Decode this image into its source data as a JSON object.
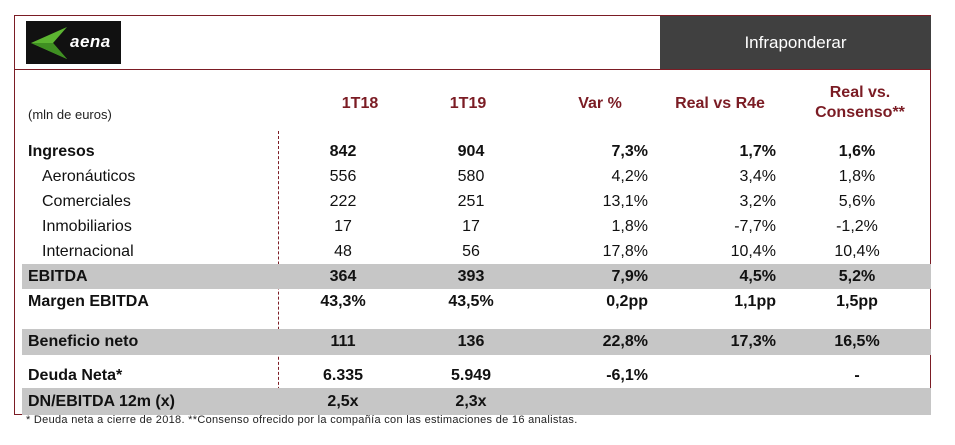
{
  "brand": {
    "logo_text": "aena",
    "accent": "#7b1c24",
    "logo_green": "#5cb531"
  },
  "rating": "Infraponderar",
  "table": {
    "units": "(mln de euros)",
    "headers": [
      "1T18",
      "1T19",
      "Var %",
      "Real vs R4e",
      "Real vs.",
      "Consenso**"
    ],
    "rows": [
      {
        "label": "Ingresos",
        "values": [
          "842",
          "904",
          "7,3%",
          "1,7%",
          "1,6%"
        ]
      },
      {
        "label": "Aeronáuticos",
        "values": [
          "556",
          "580",
          "4,2%",
          "3,4%",
          "1,8%"
        ]
      },
      {
        "label": "Comerciales",
        "values": [
          "222",
          "251",
          "13,1%",
          "3,2%",
          "5,6%"
        ]
      },
      {
        "label": "Inmobiliarios",
        "values": [
          "17",
          "17",
          "1,8%",
          "-7,7%",
          "-1,2%"
        ]
      },
      {
        "label": "Internacional",
        "values": [
          "48",
          "56",
          "17,8%",
          "10,4%",
          "10,4%"
        ]
      },
      {
        "label": "EBITDA",
        "values": [
          "364",
          "393",
          "7,9%",
          "4,5%",
          "5,2%"
        ]
      },
      {
        "label": "Margen EBITDA",
        "values": [
          "43,3%",
          "43,5%",
          "0,2pp",
          "1,1pp",
          "1,5pp"
        ]
      },
      {
        "label": "Beneficio neto",
        "values": [
          "111",
          "136",
          "22,8%",
          "17,3%",
          "16,5%"
        ]
      },
      {
        "label": "Deuda Neta*",
        "values": [
          "6.335",
          "5.949",
          "-6,1%",
          "",
          "-"
        ]
      },
      {
        "label": "DN/EBITDA 12m (x)",
        "values": [
          "2,5x",
          "2,3x",
          "",
          "",
          ""
        ]
      }
    ]
  },
  "footnote": "* Deuda neta a cierre de 2018. **Consenso ofrecido por la compañía con las estimaciones de 16 analistas."
}
